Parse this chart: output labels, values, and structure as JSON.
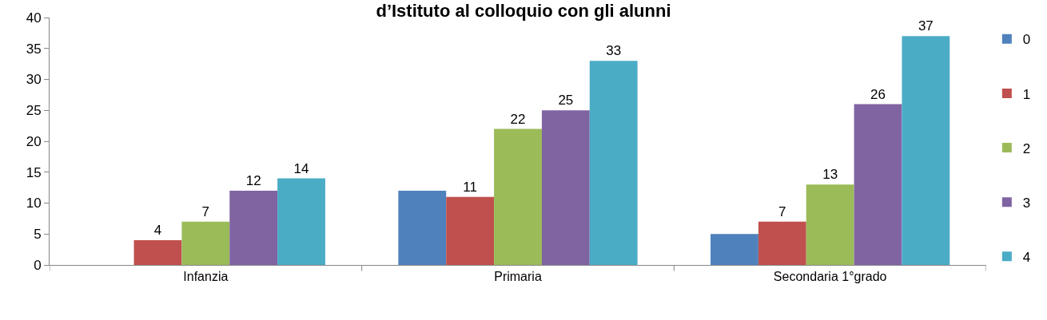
{
  "chart_data": {
    "type": "bar",
    "title": "d’Istituto al colloquio con gli alunni",
    "categories": [
      "Infanzia",
      "Primaria",
      "Secondaria 1°grado"
    ],
    "series": [
      {
        "name": "0",
        "color": "#4f81bd",
        "values": [
          null,
          12,
          5
        ],
        "value_labels": [
          null,
          null,
          null
        ]
      },
      {
        "name": "1",
        "color": "#c0504d",
        "values": [
          4,
          11,
          7
        ],
        "value_labels": [
          "4",
          "11",
          "7"
        ]
      },
      {
        "name": "2",
        "color": "#9bbb59",
        "values": [
          7,
          22,
          13
        ],
        "value_labels": [
          "7",
          "22",
          "13"
        ]
      },
      {
        "name": "3",
        "color": "#8064a2",
        "values": [
          12,
          25,
          26
        ],
        "value_labels": [
          "12",
          "25",
          "26"
        ]
      },
      {
        "name": "4",
        "color": "#4bacc6",
        "values": [
          14,
          33,
          37
        ],
        "value_labels": [
          "14",
          "33",
          "37"
        ]
      }
    ],
    "ylim": [
      0,
      40
    ],
    "yticks": [
      0,
      5,
      10,
      15,
      20,
      25,
      30,
      35,
      40
    ],
    "legend": "right"
  }
}
